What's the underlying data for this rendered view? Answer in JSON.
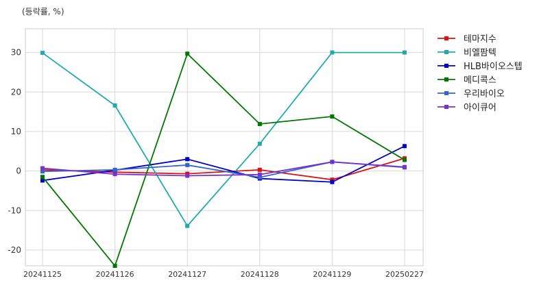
{
  "chart_data": {
    "type": "line",
    "unit_label": "(등락률, %)",
    "categories": [
      "20241125",
      "20241126",
      "20241127",
      "20241128",
      "20241129",
      "20250227"
    ],
    "ylim": [
      -24,
      36
    ],
    "yticks": [
      -20,
      -10,
      0,
      10,
      20,
      30
    ],
    "grid": true,
    "legend_position": "right",
    "series": [
      {
        "name": "테마지수",
        "color": "#dd1111",
        "values": [
          0.3,
          -0.3,
          -0.7,
          0.3,
          -2.2,
          3.2
        ]
      },
      {
        "name": "비엘팜텍",
        "color": "#22aaaa",
        "values": [
          29.9,
          16.6,
          -13.9,
          6.9,
          30.0,
          30.0
        ]
      },
      {
        "name": "HLB바이오스텝",
        "color": "#0000cc",
        "values": [
          -2.4,
          0.2,
          3.0,
          -1.9,
          -2.8,
          6.3
        ]
      },
      {
        "name": "메디콕스",
        "color": "#007700",
        "values": [
          -1.5,
          -24.0,
          29.7,
          11.9,
          13.8,
          2.8
        ]
      },
      {
        "name": "우리바이오",
        "color": "#3366cc",
        "values": [
          -0.1,
          0.3,
          1.5,
          -1.6,
          2.3,
          0.9
        ]
      },
      {
        "name": "아이큐어",
        "color": "#7733cc",
        "values": [
          0.7,
          -0.8,
          -1.2,
          -0.9,
          2.3,
          1.0
        ]
      }
    ]
  }
}
